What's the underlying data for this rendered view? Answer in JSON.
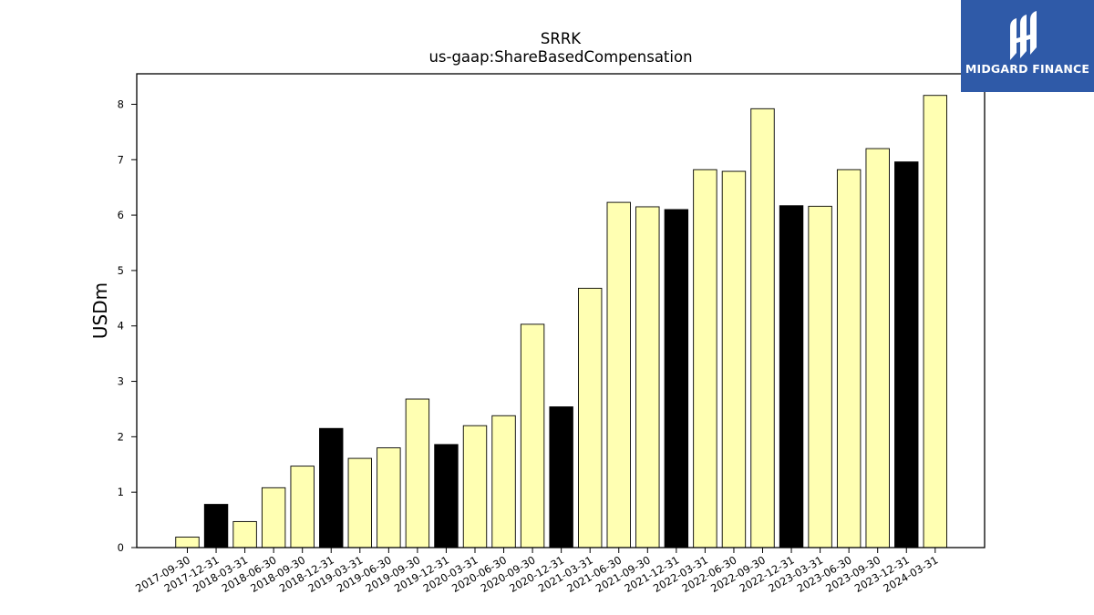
{
  "chart_data": {
    "type": "bar",
    "title": "SRRK",
    "subtitle": "us-gaap:ShareBasedCompensation",
    "xlabel": "",
    "ylabel": "USDm",
    "ylim": [
      0,
      8.55
    ],
    "yticks": [
      0,
      1,
      2,
      3,
      4,
      5,
      6,
      7,
      8
    ],
    "grid": false,
    "categories": [
      "2017-09-30",
      "2017-12-31",
      "2018-03-31",
      "2018-06-30",
      "2018-09-30",
      "2018-12-31",
      "2019-03-31",
      "2019-06-30",
      "2019-09-30",
      "2019-12-31",
      "2020-03-31",
      "2020-06-30",
      "2020-09-30",
      "2020-12-31",
      "2021-03-31",
      "2021-06-30",
      "2021-09-30",
      "2021-12-31",
      "2022-03-31",
      "2022-06-30",
      "2022-09-30",
      "2022-12-31",
      "2023-03-31",
      "2023-06-30",
      "2023-09-30",
      "2023-12-31",
      "2024-03-31"
    ],
    "values": [
      0.19,
      0.78,
      0.47,
      1.08,
      1.47,
      2.15,
      1.61,
      1.8,
      2.68,
      1.86,
      2.2,
      2.38,
      4.03,
      2.54,
      4.68,
      6.23,
      6.15,
      6.1,
      6.82,
      6.79,
      7.92,
      6.17,
      6.16,
      6.82,
      7.2,
      6.96,
      8.16
    ],
    "fiscal_year_end": [
      false,
      true,
      false,
      false,
      false,
      true,
      false,
      false,
      false,
      true,
      false,
      false,
      false,
      true,
      false,
      false,
      false,
      true,
      false,
      false,
      false,
      true,
      false,
      false,
      false,
      true,
      false
    ],
    "colors": {
      "bar": "#ffffb2",
      "year_end_bar": "#000000",
      "edge": "#000000"
    }
  },
  "logo": {
    "text": "MIDGARD FINANCE",
    "icon": "midgard-logo-icon",
    "background": "#2f5aa8"
  }
}
